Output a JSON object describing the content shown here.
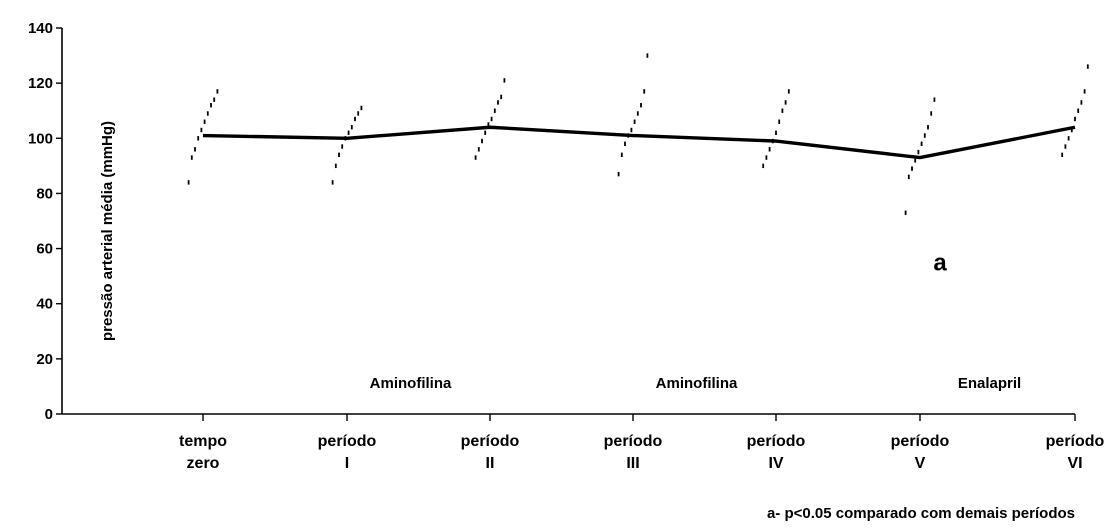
{
  "chart_data": {
    "type": "line",
    "ylabel": "pressão arterial média (mmHg)",
    "ylim": [
      0,
      140
    ],
    "yticks": [
      0,
      20,
      40,
      60,
      80,
      100,
      120,
      140
    ],
    "categories": [
      [
        "tempo",
        "zero"
      ],
      [
        "período",
        "I"
      ],
      [
        "período",
        "II"
      ],
      [
        "período",
        "III"
      ],
      [
        "período",
        "IV"
      ],
      [
        "período",
        "V"
      ],
      [
        "período",
        "VI"
      ]
    ],
    "mean": [
      101,
      100,
      104,
      101,
      99,
      93,
      104
    ],
    "points": [
      [
        84,
        93,
        96,
        100,
        103,
        106,
        109,
        112,
        114,
        117
      ],
      [
        84,
        90,
        94,
        97,
        100,
        102,
        104,
        107,
        109,
        111
      ],
      [
        93,
        96,
        99,
        102,
        105,
        107,
        110,
        113,
        115,
        121
      ],
      [
        87,
        94,
        98,
        101,
        103,
        106,
        109,
        112,
        117,
        130
      ],
      [
        90,
        93,
        96,
        99,
        102,
        106,
        110,
        113,
        117
      ],
      [
        73,
        86,
        89,
        92,
        95,
        98,
        101,
        104,
        109,
        114
      ],
      [
        94,
        97,
        100,
        103,
        107,
        110,
        113,
        117,
        126
      ]
    ],
    "annotations": [
      {
        "text": "Aminofilina",
        "between": [
          1,
          2
        ]
      },
      {
        "text": "Aminofilina",
        "between": [
          3,
          4
        ]
      },
      {
        "text": "Enalapril",
        "between": [
          5,
          6
        ]
      }
    ],
    "significance": {
      "label": "a",
      "category": 5,
      "y": 55
    },
    "footnote": "a- p<0.05 comparado com demais períodos",
    "grid": false,
    "legend": "none"
  }
}
